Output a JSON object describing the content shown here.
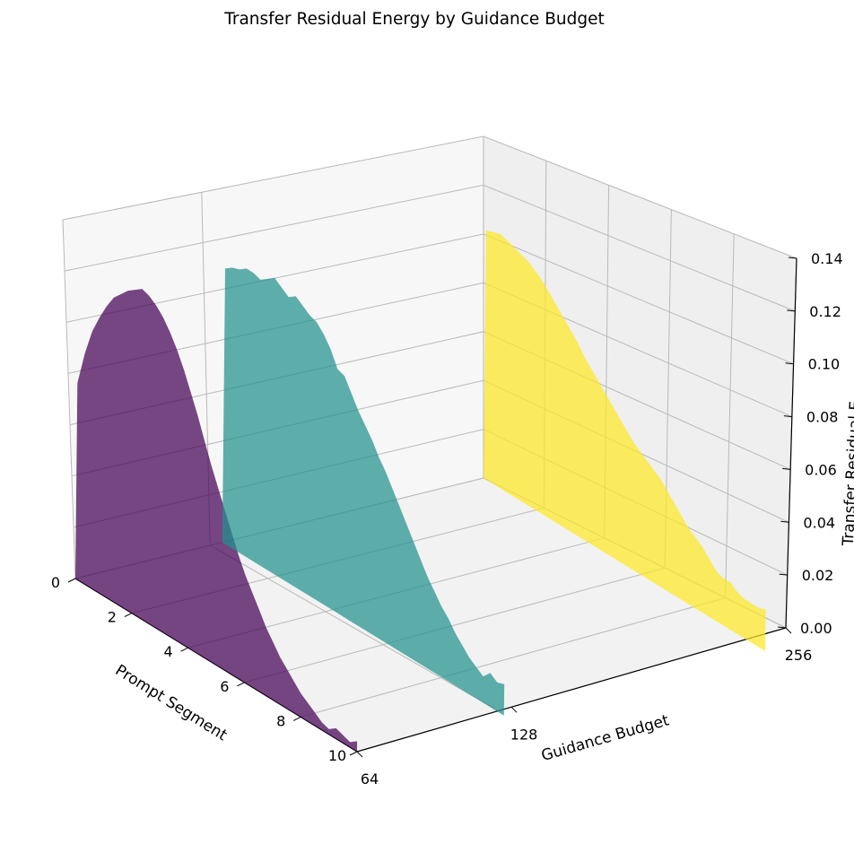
{
  "chart_data": {
    "type": "area",
    "title": "Transfer Residual Energy by Guidance Budget",
    "xlabel": "Prompt Segment",
    "ylabel": "Guidance Budget",
    "zlabel": "Transfer Residual E",
    "x_ticks": [
      "0",
      "2",
      "4",
      "6",
      "8",
      "10"
    ],
    "y_ticks": [
      "64",
      "128",
      "256"
    ],
    "z_ticks": [
      "0.00",
      "0.02",
      "0.04",
      "0.06",
      "0.08",
      "0.10",
      "0.12",
      "0.14"
    ],
    "xlim": [
      0,
      10
    ],
    "zlim": [
      0,
      0.14
    ],
    "grid": true,
    "x": [
      0.0,
      0.25,
      0.5,
      0.75,
      1.0,
      1.25,
      1.5,
      1.75,
      2.0,
      2.25,
      2.5,
      2.75,
      3.0,
      3.25,
      3.5,
      3.75,
      4.0,
      4.25,
      4.5,
      4.75,
      5.0,
      5.25,
      5.5,
      5.75,
      6.0,
      6.25,
      6.5,
      6.75,
      7.0,
      7.25,
      7.5,
      7.75,
      8.0,
      8.25,
      8.5,
      8.75,
      9.0,
      9.25,
      9.5,
      9.75,
      10.0
    ],
    "series": [
      {
        "name": "64",
        "color": "#440154",
        "values": [
          0.075,
          0.088,
          0.098,
          0.105,
          0.111,
          0.116,
          0.119,
          0.122,
          0.124,
          0.126,
          0.125,
          0.123,
          0.12,
          0.116,
          0.111,
          0.105,
          0.098,
          0.091,
          0.083,
          0.075,
          0.068,
          0.061,
          0.054,
          0.047,
          0.041,
          0.036,
          0.031,
          0.026,
          0.022,
          0.018,
          0.015,
          0.012,
          0.009,
          0.007,
          0.005,
          0.003,
          0.002,
          0.004,
          0.003,
          0.002,
          0.004
        ]
      },
      {
        "name": "128",
        "color": "#21918c",
        "values": [
          0.105,
          0.107,
          0.108,
          0.11,
          0.11,
          0.109,
          0.111,
          0.113,
          0.111,
          0.109,
          0.111,
          0.109,
          0.107,
          0.106,
          0.103,
          0.099,
          0.093,
          0.092,
          0.087,
          0.082,
          0.078,
          0.074,
          0.069,
          0.065,
          0.06,
          0.055,
          0.05,
          0.045,
          0.04,
          0.035,
          0.031,
          0.027,
          0.024,
          0.02,
          0.017,
          0.014,
          0.012,
          0.01,
          0.013,
          0.011,
          0.012
        ]
      },
      {
        "name": "256",
        "color": "#fde725",
        "values": [
          0.095,
          0.096,
          0.097,
          0.096,
          0.095,
          0.094,
          0.093,
          0.091,
          0.089,
          0.086,
          0.083,
          0.08,
          0.077,
          0.074,
          0.07,
          0.067,
          0.064,
          0.061,
          0.058,
          0.055,
          0.052,
          0.049,
          0.047,
          0.045,
          0.043,
          0.041,
          0.038,
          0.035,
          0.032,
          0.029,
          0.027,
          0.025,
          0.022,
          0.019,
          0.018,
          0.018,
          0.016,
          0.015,
          0.015,
          0.015,
          0.016
        ]
      }
    ]
  }
}
